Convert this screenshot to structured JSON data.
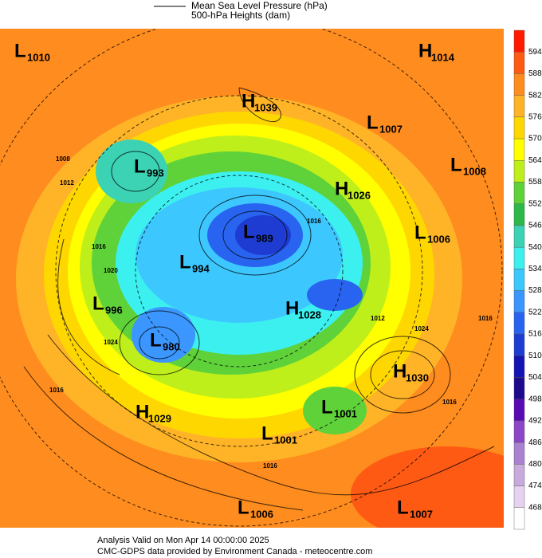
{
  "legend": {
    "line1": "Mean Sea Level Pressure (hPa)",
    "line2": "500-hPa Heights (dam)"
  },
  "centers": [
    {
      "kind": "L",
      "value": "1010"
    },
    {
      "kind": "H",
      "value": "1014"
    },
    {
      "kind": "H",
      "value": "1039"
    },
    {
      "kind": "L",
      "value": "1007"
    },
    {
      "kind": "L",
      "value": "993"
    },
    {
      "kind": "L",
      "value": "1008"
    },
    {
      "kind": "H",
      "value": "1026"
    },
    {
      "kind": "L",
      "value": "989"
    },
    {
      "kind": "L",
      "value": "1006"
    },
    {
      "kind": "L",
      "value": "994"
    },
    {
      "kind": "L",
      "value": "996"
    },
    {
      "kind": "H",
      "value": "1028"
    },
    {
      "kind": "L",
      "value": "980"
    },
    {
      "kind": "H",
      "value": "1030"
    },
    {
      "kind": "L",
      "value": "1001"
    },
    {
      "kind": "H",
      "value": "1029"
    },
    {
      "kind": "L",
      "value": "1001"
    },
    {
      "kind": "L",
      "value": "1006"
    },
    {
      "kind": "L",
      "value": "1007"
    }
  ],
  "isobar_labels": [
    "1012",
    "1016",
    "1024",
    "1016",
    "1020",
    "1016",
    "1012",
    "1016",
    "1024",
    "1016",
    "1008",
    "1016"
  ],
  "colorbar": {
    "labels": [
      "594",
      "588",
      "582",
      "576",
      "570",
      "564",
      "558",
      "552",
      "546",
      "540",
      "534",
      "528",
      "522",
      "516",
      "510",
      "504",
      "498",
      "492",
      "486",
      "480",
      "474",
      "468"
    ],
    "colors": [
      "#ff1a00",
      "#ff5a14",
      "#ff8c1e",
      "#ffb428",
      "#ffd700",
      "#ffff00",
      "#bfef1a",
      "#5fd23a",
      "#2eb84a",
      "#3cd2b4",
      "#3cf0f0",
      "#3cc8ff",
      "#3c96ff",
      "#2864f0",
      "#1e3cd2",
      "#1414b4",
      "#1e0a8c",
      "#5a0ab4",
      "#8c46c8",
      "#aa82d2",
      "#c8aadc",
      "#e6d2f0"
    ]
  },
  "footer": {
    "line1": "Analysis Valid on Mon Apr 14 00:00:00 2025",
    "line2": "CMC-GDPS data provided by Environment Canada - meteocentre.com"
  }
}
